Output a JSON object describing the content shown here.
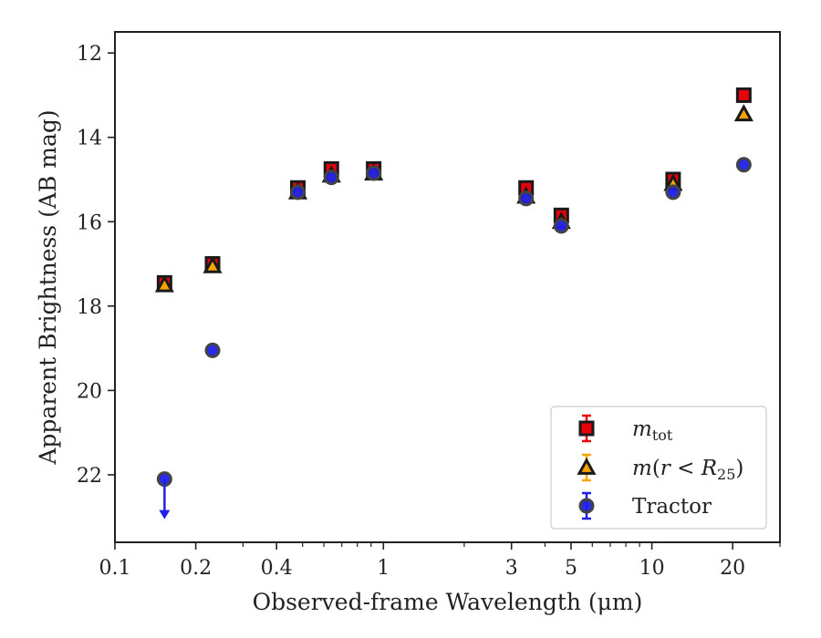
{
  "chart_data": {
    "type": "scatter",
    "xlabel": "Observed-frame Wavelength (μm)",
    "ylabel": "Apparent Brightness (AB mag)",
    "x_scale": "log",
    "xlim": [
      0.1,
      30
    ],
    "ylim": [
      23.6,
      11.5
    ],
    "y_inverted": true,
    "x_ticks": [
      {
        "value": 0.1,
        "label": "0.1"
      },
      {
        "value": 0.2,
        "label": "0.2"
      },
      {
        "value": 0.4,
        "label": "0.4"
      },
      {
        "value": 1,
        "label": "1"
      },
      {
        "value": 3,
        "label": "3"
      },
      {
        "value": 5,
        "label": "5"
      },
      {
        "value": 10,
        "label": "10"
      },
      {
        "value": 20,
        "label": "20"
      }
    ],
    "x_minor_ticks": [
      0.3,
      0.5,
      0.6,
      0.7,
      0.8,
      0.9,
      2,
      4,
      6,
      7,
      8,
      9,
      30
    ],
    "y_ticks": [
      {
        "value": 12,
        "label": "12"
      },
      {
        "value": 14,
        "label": "14"
      },
      {
        "value": 16,
        "label": "16"
      },
      {
        "value": 18,
        "label": "18"
      },
      {
        "value": 20,
        "label": "20"
      },
      {
        "value": 22,
        "label": "22"
      }
    ],
    "grid": false,
    "legend_position": "bottom-right",
    "series": [
      {
        "name": "m_tot",
        "marker": "square",
        "color": "#e8000b",
        "edgecolor": "#1a1a1a",
        "x": [
          0.153,
          0.231,
          0.48,
          0.64,
          0.92,
          3.4,
          4.6,
          12.0,
          22.0
        ],
        "y": [
          17.45,
          17.0,
          15.2,
          14.75,
          14.75,
          15.2,
          15.85,
          15.0,
          13.0
        ]
      },
      {
        "name": "m(r < R25)",
        "marker": "triangle",
        "color": "#f5a300",
        "edgecolor": "#1a1a1a",
        "x": [
          0.153,
          0.231,
          0.48,
          0.64,
          0.92,
          3.4,
          4.6,
          12.0,
          22.0
        ],
        "y": [
          17.5,
          17.05,
          15.3,
          14.9,
          14.85,
          15.4,
          16.0,
          15.1,
          13.45
        ]
      },
      {
        "name": "Tractor",
        "marker": "circle",
        "color": "#1f1fe8",
        "edgecolor": "#444444",
        "x": [
          0.153,
          0.231,
          0.48,
          0.64,
          0.92,
          3.4,
          4.6,
          12.0,
          22.0
        ],
        "y": [
          22.1,
          19.05,
          15.3,
          14.95,
          14.85,
          15.45,
          16.1,
          15.3,
          14.65
        ],
        "upper_limit_index": 0
      }
    ]
  }
}
